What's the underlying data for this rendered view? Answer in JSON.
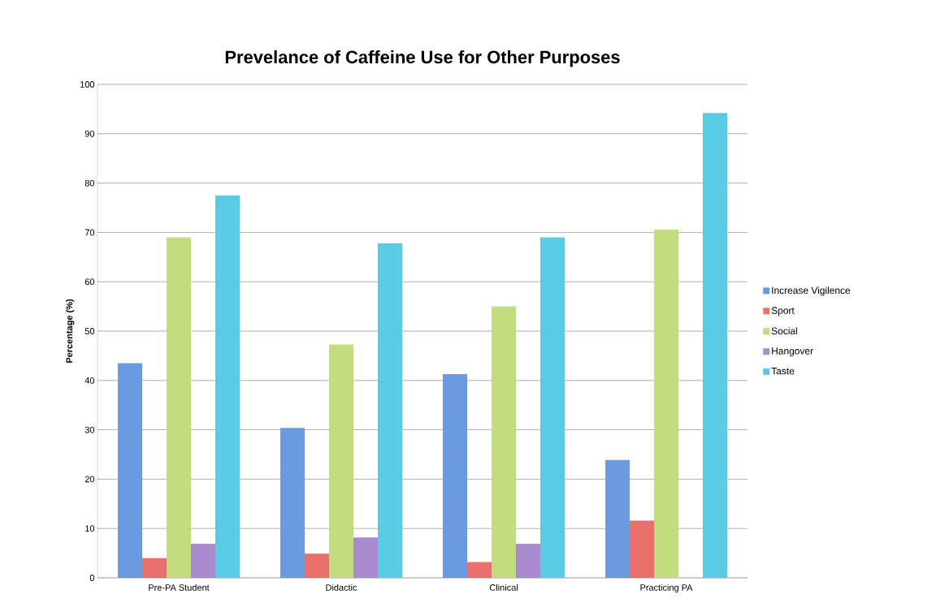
{
  "chart_data": {
    "type": "bar",
    "title": "Prevelance of Caffeine Use for Other Purposes",
    "ylabel": "Percentage (%)",
    "categories": [
      "Pre-PA Student",
      "Didactic",
      "Clinical",
      "Practicing PA"
    ],
    "series": [
      {
        "name": "Increase Vigilence",
        "color": "#6a9be0",
        "values": [
          43.5,
          30.4,
          41.3,
          23.9
        ]
      },
      {
        "name": "Sport",
        "color": "#e8716b",
        "values": [
          4.0,
          4.9,
          3.2,
          11.6
        ]
      },
      {
        "name": "Social",
        "color": "#c1dd80",
        "values": [
          69.0,
          47.3,
          55.0,
          70.6
        ]
      },
      {
        "name": "Hangover",
        "color": "#a98bcf",
        "values": [
          6.9,
          8.2,
          6.9,
          0
        ]
      },
      {
        "name": "Taste",
        "color": "#5acbe4",
        "values": [
          77.5,
          67.8,
          69.0,
          94.2
        ]
      }
    ],
    "ylim": [
      0,
      100
    ],
    "yticks": [
      0,
      10,
      20,
      30,
      40,
      50,
      60,
      70,
      80,
      90,
      100
    ],
    "grid": "y",
    "legend": "right"
  }
}
